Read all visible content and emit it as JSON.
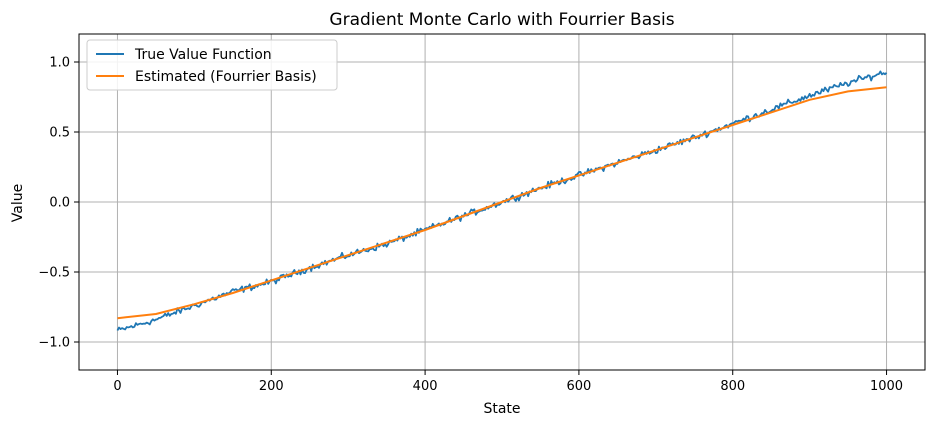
{
  "chart_data": {
    "type": "line",
    "title": "Gradient Monte Carlo with Fourrier Basis",
    "xlabel": "State",
    "ylabel": "Value",
    "xlim": [
      -50,
      1050
    ],
    "ylim": [
      -1.2,
      1.2
    ],
    "x_ticks": [
      0,
      200,
      400,
      600,
      800,
      1000
    ],
    "y_ticks": [
      -1.0,
      -0.5,
      0.0,
      0.5,
      1.0
    ],
    "x_tick_labels": [
      "0",
      "200",
      "400",
      "600",
      "800",
      "1000"
    ],
    "y_tick_labels": [
      "−1.0",
      "−0.5",
      "0.0",
      "0.5",
      "1.0"
    ],
    "grid": true,
    "legend_position": "top-left",
    "series": [
      {
        "name": "True Value Function",
        "color": "#1f77b4",
        "x": [
          0,
          50,
          100,
          150,
          200,
          250,
          300,
          350,
          400,
          450,
          500,
          550,
          600,
          650,
          700,
          750,
          800,
          850,
          900,
          950,
          1000
        ],
        "y": [
          -0.92,
          -0.84,
          -0.74,
          -0.64,
          -0.57,
          -0.47,
          -0.38,
          -0.3,
          -0.2,
          -0.1,
          0.0,
          0.1,
          0.19,
          0.28,
          0.37,
          0.46,
          0.56,
          0.66,
          0.76,
          0.85,
          0.93
        ],
        "noisy": true
      },
      {
        "name": "Estimated (Fourrier Basis)",
        "color": "#ff7f0e",
        "x": [
          0,
          50,
          100,
          150,
          200,
          250,
          300,
          350,
          400,
          450,
          500,
          550,
          600,
          650,
          700,
          750,
          800,
          850,
          900,
          950,
          1000
        ],
        "y": [
          -0.83,
          -0.8,
          -0.73,
          -0.65,
          -0.56,
          -0.47,
          -0.38,
          -0.29,
          -0.2,
          -0.1,
          0.0,
          0.1,
          0.19,
          0.28,
          0.37,
          0.46,
          0.55,
          0.64,
          0.73,
          0.79,
          0.82
        ]
      }
    ]
  }
}
